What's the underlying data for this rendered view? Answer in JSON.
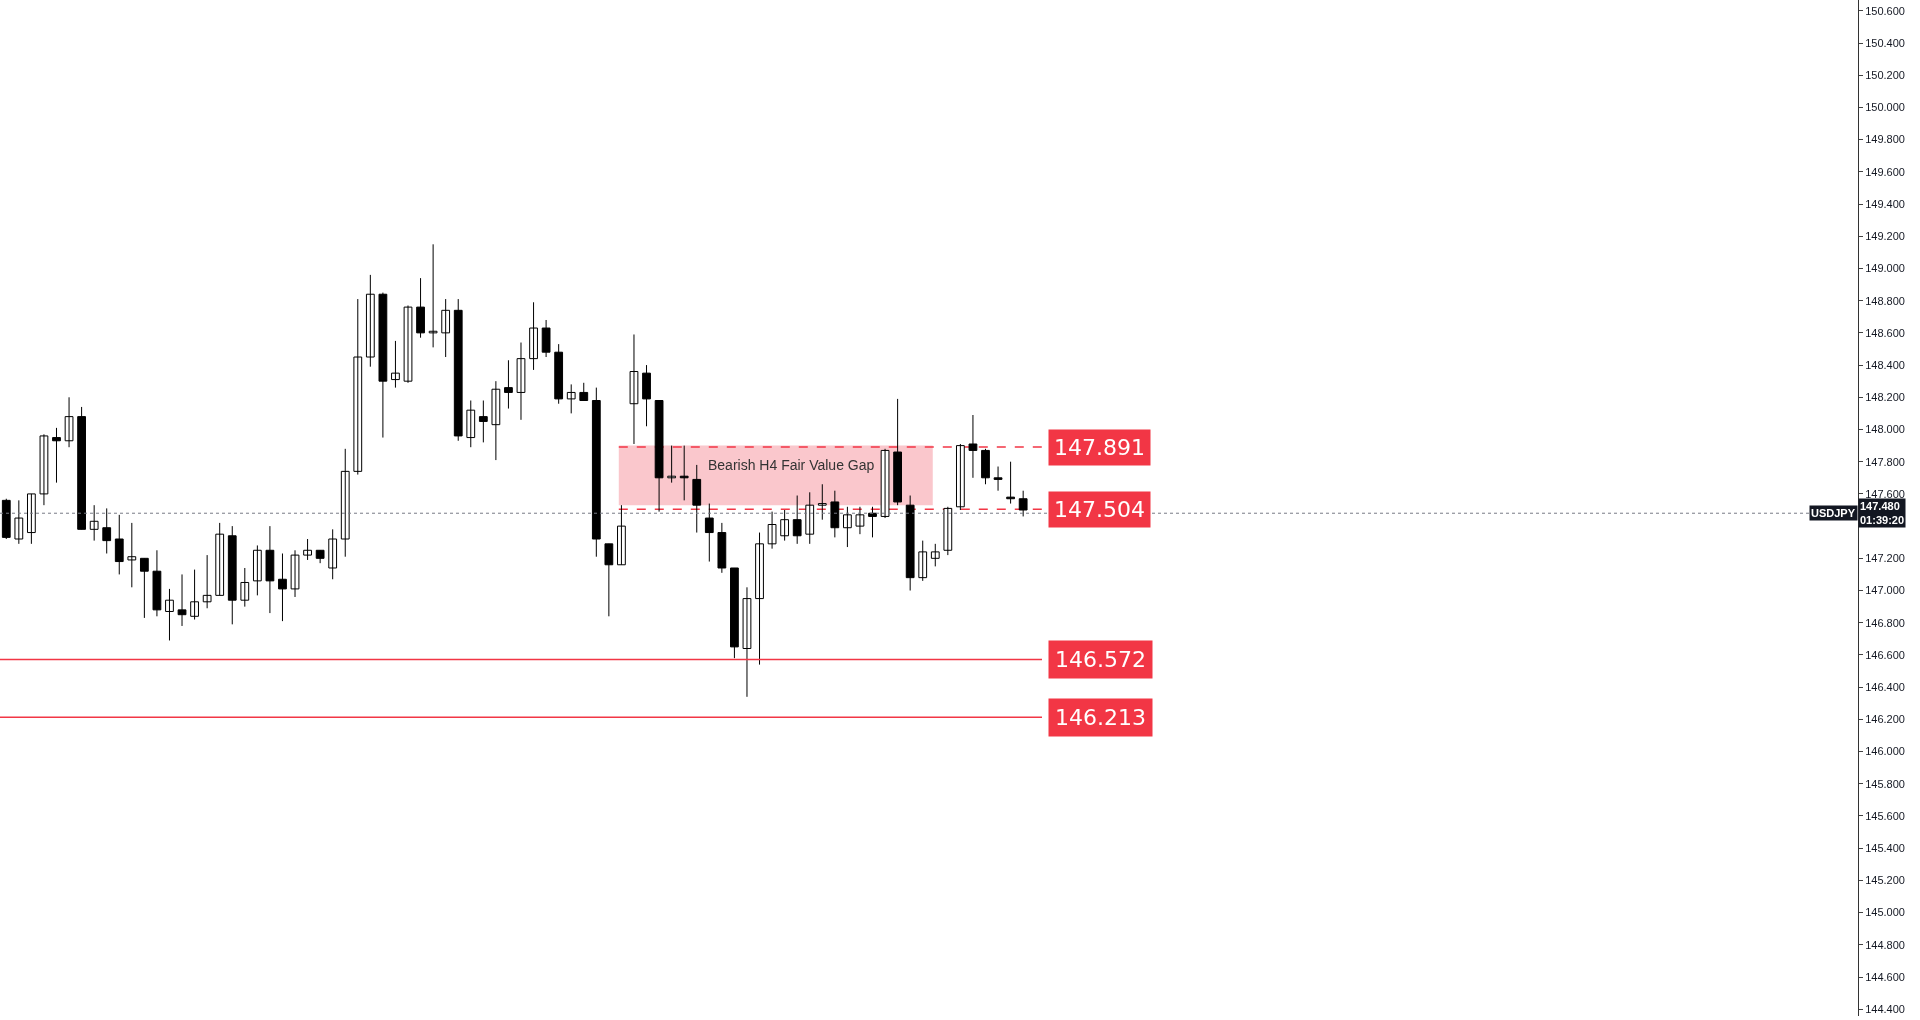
{
  "chart_data": {
    "type": "candlestick",
    "categories": [
      null,
      null,
      null,
      null,
      null,
      null,
      null,
      null,
      null,
      null,
      null,
      null,
      null,
      null,
      null,
      null,
      null,
      null,
      null,
      null,
      null,
      null,
      null,
      null,
      null,
      null,
      null,
      null,
      null,
      null,
      null,
      null,
      null,
      null,
      null,
      null,
      null,
      null,
      null,
      null,
      null,
      null,
      null,
      null,
      null,
      null,
      null,
      null,
      null,
      null,
      null,
      null,
      null,
      null,
      null,
      null,
      null,
      null,
      null,
      null,
      null,
      null,
      null,
      null,
      null,
      null,
      null,
      null,
      null,
      null,
      null,
      null,
      null,
      null,
      null,
      null,
      null,
      null,
      null,
      null,
      null,
      null,
      null,
      null,
      null,
      null,
      null,
      null,
      null,
      null,
      null,
      null,
      null,
      null,
      null,
      null,
      null,
      null,
      null,
      null,
      null,
      null,
      null,
      null,
      null,
      null,
      null,
      null,
      null,
      null,
      null,
      null,
      null,
      null,
      null,
      null,
      null,
      null,
      null,
      null,
      null,
      null,
      null,
      null,
      null,
      null,
      null,
      null,
      null,
      null,
      null,
      null,
      null,
      null,
      null,
      null,
      null,
      null,
      null,
      null,
      null,
      null,
      null,
      null,
      null,
      null,
      null,
      null
    ],
    "ohlc": [
      [
        147.56,
        147.57,
        147.32,
        147.33
      ],
      [
        147.32,
        147.56,
        147.29,
        147.45
      ],
      [
        147.36,
        147.6,
        147.29,
        147.6
      ],
      [
        147.6,
        147.97,
        147.53,
        147.96
      ],
      [
        147.95,
        148.01,
        147.67,
        147.93
      ],
      [
        147.93,
        148.2,
        147.89,
        148.08
      ],
      [
        148.08,
        148.14,
        147.38,
        147.38
      ],
      [
        147.38,
        147.53,
        147.31,
        147.43
      ],
      [
        147.39,
        147.51,
        147.23,
        147.31
      ],
      [
        147.32,
        147.47,
        147.1,
        147.18
      ],
      [
        147.19,
        147.42,
        147.02,
        147.21
      ],
      [
        147.2,
        147.2,
        146.83,
        147.12
      ],
      [
        147.12,
        147.25,
        146.84,
        146.88
      ],
      [
        146.87,
        147.01,
        146.69,
        146.94
      ],
      [
        146.88,
        147.1,
        146.78,
        146.85
      ],
      [
        146.84,
        147.13,
        146.82,
        146.93
      ],
      [
        146.93,
        147.22,
        146.89,
        146.97
      ],
      [
        146.97,
        147.42,
        146.97,
        147.35
      ],
      [
        147.34,
        147.4,
        146.79,
        146.94
      ],
      [
        146.94,
        147.14,
        146.9,
        147.05
      ],
      [
        147.06,
        147.28,
        146.97,
        147.25
      ],
      [
        147.25,
        147.4,
        146.86,
        147.06
      ],
      [
        147.07,
        147.23,
        146.81,
        147.01
      ],
      [
        147.01,
        147.25,
        146.96,
        147.22
      ],
      [
        147.22,
        147.32,
        147.19,
        147.25
      ],
      [
        147.25,
        147.25,
        147.17,
        147.2
      ],
      [
        147.14,
        147.38,
        147.07,
        147.32
      ],
      [
        147.32,
        147.88,
        147.21,
        147.74
      ],
      [
        147.74,
        148.81,
        147.72,
        148.45
      ],
      [
        148.45,
        148.96,
        148.39,
        148.84
      ],
      [
        148.84,
        148.85,
        147.95,
        148.3
      ],
      [
        148.31,
        148.55,
        148.26,
        148.35
      ],
      [
        148.3,
        148.77,
        148.29,
        148.76
      ],
      [
        148.76,
        148.94,
        148.57,
        148.6
      ],
      [
        148.6,
        149.15,
        148.51,
        148.61
      ],
      [
        148.6,
        148.81,
        148.45,
        148.74
      ],
      [
        148.74,
        148.81,
        147.93,
        147.96
      ],
      [
        147.95,
        148.18,
        147.89,
        148.12
      ],
      [
        148.08,
        148.18,
        147.92,
        148.05
      ],
      [
        148.03,
        148.3,
        147.81,
        148.25
      ],
      [
        148.26,
        148.43,
        148.13,
        148.23
      ],
      [
        148.23,
        148.54,
        148.06,
        148.44
      ],
      [
        148.44,
        148.79,
        148.37,
        148.63
      ],
      [
        148.63,
        148.68,
        148.45,
        148.48
      ],
      [
        148.48,
        148.53,
        148.16,
        148.19
      ],
      [
        148.19,
        148.28,
        148.1,
        148.23
      ],
      [
        148.23,
        148.29,
        148.18,
        148.18
      ],
      [
        148.18,
        148.26,
        147.21,
        147.32
      ],
      [
        147.29,
        147.29,
        146.84,
        147.16
      ],
      [
        147.16,
        147.53,
        147.16,
        147.4
      ],
      [
        148.16,
        148.59,
        147.91,
        148.36
      ],
      [
        148.35,
        148.4,
        148.02,
        148.19
      ],
      [
        148.18,
        148.18,
        147.49,
        147.7
      ],
      [
        147.7,
        147.9,
        147.67,
        147.71
      ],
      [
        147.71,
        147.9,
        147.56,
        147.7
      ],
      [
        147.69,
        147.78,
        147.36,
        147.53
      ],
      [
        147.45,
        147.54,
        147.18,
        147.36
      ],
      [
        147.36,
        147.42,
        147.11,
        147.14
      ],
      [
        147.14,
        147.14,
        146.58,
        146.65
      ],
      [
        146.64,
        147.02,
        146.34,
        146.95
      ],
      [
        146.95,
        147.36,
        146.54,
        147.29
      ],
      [
        147.29,
        147.49,
        147.26,
        147.41
      ],
      [
        147.34,
        147.5,
        147.31,
        147.44
      ],
      [
        147.44,
        147.59,
        147.29,
        147.34
      ],
      [
        147.35,
        147.61,
        147.29,
        147.53
      ],
      [
        147.53,
        147.66,
        147.44,
        147.54
      ],
      [
        147.55,
        147.62,
        147.33,
        147.39
      ],
      [
        147.39,
        147.52,
        147.27,
        147.47
      ],
      [
        147.4,
        147.52,
        147.35,
        147.47
      ],
      [
        147.48,
        147.52,
        147.33,
        147.46
      ],
      [
        147.46,
        147.88,
        147.45,
        147.87
      ],
      [
        147.86,
        148.19,
        147.53,
        147.55
      ],
      [
        147.53,
        147.59,
        147.0,
        147.08
      ],
      [
        147.08,
        147.31,
        147.06,
        147.24
      ],
      [
        147.2,
        147.29,
        147.15,
        147.24
      ],
      [
        147.25,
        147.52,
        147.22,
        147.51
      ],
      [
        147.52,
        147.91,
        147.5,
        147.9
      ],
      [
        147.91,
        148.09,
        147.7,
        147.87
      ],
      [
        147.87,
        147.88,
        147.66,
        147.7
      ],
      [
        147.7,
        147.77,
        147.62,
        147.69
      ],
      [
        147.58,
        147.8,
        147.54,
        147.57
      ],
      [
        147.57,
        147.62,
        147.46,
        147.5
      ],
      null,
      null,
      null,
      null,
      null,
      null,
      null,
      null,
      null,
      null,
      null,
      null,
      null,
      null,
      null,
      null,
      null,
      null,
      null,
      null,
      null,
      null,
      null,
      null,
      null,
      null,
      null,
      null,
      null,
      null,
      null,
      null,
      null,
      null,
      null,
      null,
      null,
      null,
      null,
      null,
      null,
      null,
      null,
      null,
      null,
      null,
      null,
      null,
      null,
      null,
      null,
      null,
      null,
      null,
      null,
      null,
      null,
      null,
      null,
      null,
      null,
      null,
      null,
      null,
      null,
      null
    ],
    "color": "#000000",
    "ylim": [
      144.358,
      150.667
    ],
    "yticks": [
      {
        "value": 144.4,
        "label": "144.400"
      },
      {
        "value": 144.6,
        "label": "144.600"
      },
      {
        "value": 144.8,
        "label": "144.800"
      },
      {
        "value": 145.0,
        "label": "145.000"
      },
      {
        "value": 145.2,
        "label": "145.200"
      },
      {
        "value": 145.4,
        "label": "145.400"
      },
      {
        "value": 145.6,
        "label": "145.600"
      },
      {
        "value": 145.8,
        "label": "145.800"
      },
      {
        "value": 146.0,
        "label": "146.000"
      },
      {
        "value": 146.2,
        "label": "146.200"
      },
      {
        "value": 146.4,
        "label": "146.400"
      },
      {
        "value": 146.6,
        "label": "146.600"
      },
      {
        "value": 146.8,
        "label": "146.800"
      },
      {
        "value": 147.0,
        "label": "147.000"
      },
      {
        "value": 147.2,
        "label": "147.200"
      },
      {
        "value": 147.6,
        "label": "147.600"
      },
      {
        "value": 147.8,
        "label": "147.800"
      },
      {
        "value": 148.0,
        "label": "148.000"
      },
      {
        "value": 148.2,
        "label": "148.200"
      },
      {
        "value": 148.4,
        "label": "148.400"
      },
      {
        "value": 148.6,
        "label": "148.600"
      },
      {
        "value": 148.8,
        "label": "148.800"
      },
      {
        "value": 149.0,
        "label": "149.000"
      },
      {
        "value": 149.2,
        "label": "149.200"
      },
      {
        "value": 149.4,
        "label": "149.400"
      },
      {
        "value": 149.6,
        "label": "149.600"
      },
      {
        "value": 149.8,
        "label": "149.800"
      },
      {
        "value": 150.0,
        "label": "150.000"
      },
      {
        "value": 150.2,
        "label": "150.200"
      },
      {
        "value": 150.4,
        "label": "150.400"
      },
      {
        "value": 150.6,
        "label": "150.600"
      }
    ],
    "ref_lines": [
      {
        "axis": "y",
        "value": 147.48,
        "label": "USDJPY",
        "color": "#787b86",
        "line_style": "dotted"
      },
      {
        "axis": "y",
        "value": 146.572,
        "label": "146.572",
        "color": "#f23645",
        "line_style": "solid"
      },
      {
        "axis": "y",
        "value": 146.213,
        "label": "146.213",
        "color": "#f23645",
        "line_style": "solid"
      },
      {
        "axis": "y",
        "value": 147.891,
        "label": "147.891",
        "color": "#f23645",
        "line_style": "dashed"
      },
      {
        "axis": "y",
        "value": 147.504,
        "label": "147.504",
        "color": "#f23645",
        "line_style": "dashed"
      }
    ],
    "bands": [
      {
        "axis": "y",
        "from": 147.53,
        "to": 147.9,
        "label": "Bearish H4 Fair Value Gap",
        "color": "#f7a1aa"
      }
    ],
    "annotations": [
      "147.480",
      "01:39:20"
    ],
    "grid": false,
    "tick_labels": "y"
  }
}
